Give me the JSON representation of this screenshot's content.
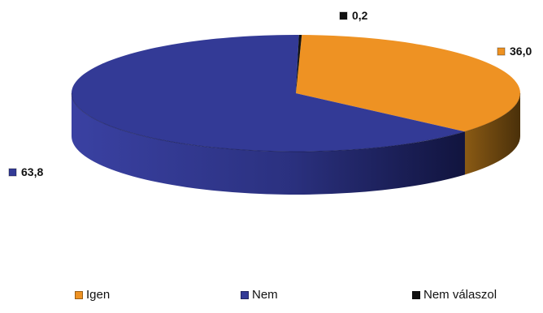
{
  "chart_data": {
    "type": "pie",
    "subtype": "3d",
    "slices": [
      {
        "name": "Igen",
        "value": 36.0,
        "label": "36,0",
        "color": "#ee9223"
      },
      {
        "name": "Nem",
        "value": 63.8,
        "label": "63,8",
        "color": "#333a96"
      },
      {
        "name": "Nem válaszol",
        "value": 0.2,
        "label": "0,2",
        "color": "#111111"
      }
    ],
    "legend_position": "bottom"
  }
}
